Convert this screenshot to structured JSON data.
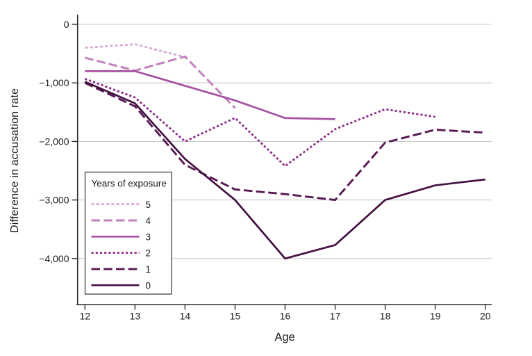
{
  "chart_data": {
    "type": "line",
    "title": "",
    "xlabel": "Age",
    "ylabel": "Difference in accusation rate",
    "x_ticks": [
      12,
      13,
      14,
      15,
      16,
      17,
      18,
      19,
      20
    ],
    "y_ticks": [
      0,
      -1000,
      -2000,
      -3000,
      -4000
    ],
    "y_tick_labels": [
      "0",
      "−1,000",
      "−2,000",
      "−3,000",
      "−4,000"
    ],
    "xlim": [
      11.85,
      20.15
    ],
    "ylim": [
      -4800,
      170
    ],
    "grid": "horizontal",
    "style": {
      "grid_color": "#c9c9c9",
      "axis_color": "#2e2e2e",
      "text_color": "#1c1c1c",
      "legend_border_color": "#333333",
      "background_color": "#ffffff"
    },
    "legend": {
      "title": "Years of exposure",
      "position": "inside-bottom-left"
    },
    "series": [
      {
        "name": "5",
        "line_style": "dotted",
        "color": "#d7abd3",
        "x": [
          12,
          13,
          14
        ],
        "y": [
          -400,
          -340,
          -560
        ]
      },
      {
        "name": "4",
        "line_style": "dashed",
        "color": "#c17fbd",
        "x": [
          12,
          13,
          14,
          15
        ],
        "y": [
          -570,
          -790,
          -550,
          -1430
        ]
      },
      {
        "name": "3",
        "line_style": "solid",
        "color": "#a750a1",
        "x": [
          12,
          13,
          14,
          15,
          16,
          17
        ],
        "y": [
          -800,
          -800,
          -1050,
          -1300,
          -1600,
          -1620
        ]
      },
      {
        "name": "2",
        "line_style": "dotted",
        "color": "#8c2d86",
        "x": [
          12,
          13,
          14,
          15,
          16,
          17,
          18,
          19
        ],
        "y": [
          -930,
          -1250,
          -2000,
          -1600,
          -2420,
          -1790,
          -1450,
          -1580
        ]
      },
      {
        "name": "1",
        "line_style": "dashed",
        "color": "#571852",
        "x": [
          12,
          13,
          14,
          15,
          16,
          17,
          18,
          19,
          20
        ],
        "y": [
          -1000,
          -1400,
          -2400,
          -2820,
          -2900,
          -3000,
          -2020,
          -1800,
          -1850
        ]
      },
      {
        "name": "0",
        "line_style": "solid",
        "color": "#441041",
        "x": [
          12,
          13,
          14,
          15,
          16,
          17,
          18,
          19,
          20
        ],
        "y": [
          -980,
          -1350,
          -2300,
          -3000,
          -4000,
          -3770,
          -3000,
          -2750,
          -2650
        ]
      }
    ]
  }
}
